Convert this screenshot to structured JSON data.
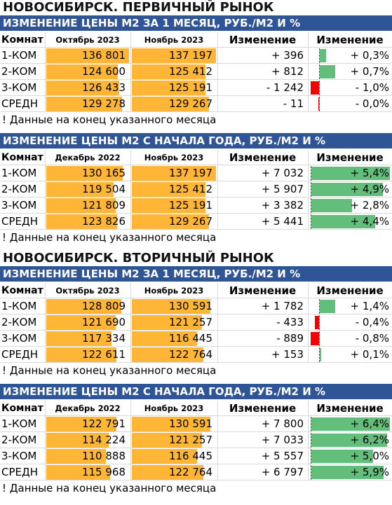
{
  "colors": {
    "header_bg": "#2f5597",
    "price_bar": "#ffb636",
    "positive_bar": "#63be7b",
    "negative_bar": "#f40000"
  },
  "blocks": [
    {
      "main_title": "НОВОСИБИРСК. ПЕРВИЧНЫЙ РЫНОК",
      "tables": [
        {
          "title": "ИЗМЕНЕНИЕ ЦЕНЫ М2 ЗА 1 МЕСЯЦ, РУБ./М2 И %",
          "headers": [
            "Комнат",
            "Октябрь 2023",
            "Ноябрь 2023",
            "Изменение",
            "Изменение"
          ],
          "rows": [
            {
              "room": "1-КОМ",
              "p1": "136 801",
              "p2": "137 197",
              "diff": "+ 396",
              "pct": "+ 0,3%",
              "pct_value": 0.3
            },
            {
              "room": "2-КОМ",
              "p1": "124 600",
              "p2": "125 412",
              "diff": "+ 812",
              "pct": "+ 0,7%",
              "pct_value": 0.7
            },
            {
              "room": "3-КОМ",
              "p1": "126 433",
              "p2": "125 191",
              "diff": "- 1 242",
              "pct": "- 1,0%",
              "pct_value": -1.0
            },
            {
              "room": "СРЕДН",
              "p1": "129 278",
              "p2": "129 267",
              "diff": "- 11",
              "pct": "- 0,0%",
              "pct_value": -0.01
            }
          ],
          "note": "! Данные на конец указанного месяца"
        },
        {
          "title": "ИЗМЕНЕНИЕ ЦЕНЫ М2 С НАЧАЛА ГОДА, РУБ./М2 И %",
          "headers": [
            "Комнат",
            "Декабрь 2022",
            "Ноябрь 2023",
            "Изменение",
            "Изменение"
          ],
          "rows": [
            {
              "room": "1-КОМ",
              "p1": "130 165",
              "p2": "137 197",
              "diff": "+ 7 032",
              "pct": "+ 5,4%",
              "pct_value": 5.4
            },
            {
              "room": "2-КОМ",
              "p1": "119 504",
              "p2": "125 412",
              "diff": "+ 5 907",
              "pct": "+ 4,9%",
              "pct_value": 4.9
            },
            {
              "room": "3-КОМ",
              "p1": "121 809",
              "p2": "125 191",
              "diff": "+ 3 382",
              "pct": "+ 2,8%",
              "pct_value": 2.8
            },
            {
              "room": "СРЕДН",
              "p1": "123 826",
              "p2": "129 267",
              "diff": "+ 5 441",
              "pct": "+ 4,4%",
              "pct_value": 4.4
            }
          ],
          "note": "! Данные на конец указанного месяца"
        }
      ]
    },
    {
      "main_title": "НОВОСИБИРСК. ВТОРИЧНЫЙ РЫНОК",
      "tables": [
        {
          "title": "ИЗМЕНЕНИЕ ЦЕНЫ М2 ЗА 1 МЕСЯЦ, РУБ./М2 И %",
          "headers": [
            "Комнат",
            "Октябрь 2023",
            "Ноябрь 2023",
            "Изменение",
            "Изменение"
          ],
          "rows": [
            {
              "room": "1-КОМ",
              "p1": "128 809",
              "p2": "130 591",
              "diff": "+ 1 782",
              "pct": "+ 1,4%",
              "pct_value": 1.4
            },
            {
              "room": "2-КОМ",
              "p1": "121 690",
              "p2": "121 257",
              "diff": "- 433",
              "pct": "- 0,4%",
              "pct_value": -0.4
            },
            {
              "room": "3-КОМ",
              "p1": "117 334",
              "p2": "116 445",
              "diff": "- 889",
              "pct": "- 0,8%",
              "pct_value": -0.8
            },
            {
              "room": "СРЕДН",
              "p1": "122 611",
              "p2": "122 764",
              "diff": "+ 153",
              "pct": "+ 0,1%",
              "pct_value": 0.1
            }
          ],
          "note": "! Данные на конец указанного месяца"
        },
        {
          "title": "ИЗМЕНЕНИЕ ЦЕНЫ М2 С НАЧАЛА ГОДА, РУБ./М2 И %",
          "headers": [
            "Комнат",
            "Декабрь 2022",
            "Ноябрь 2023",
            "Изменение",
            "Изменение"
          ],
          "rows": [
            {
              "room": "1-КОМ",
              "p1": "122 791",
              "p2": "130 591",
              "diff": "+ 7 800",
              "pct": "+ 6,4%",
              "pct_value": 6.4
            },
            {
              "room": "2-КОМ",
              "p1": "114 224",
              "p2": "121 257",
              "diff": "+ 7 033",
              "pct": "+ 6,2%",
              "pct_value": 6.2
            },
            {
              "room": "3-КОМ",
              "p1": "110 888",
              "p2": "116 445",
              "diff": "+ 5 557",
              "pct": "+ 5,0%",
              "pct_value": 5.0
            },
            {
              "room": "СРЕДН",
              "p1": "115 968",
              "p2": "122 764",
              "diff": "+ 6 797",
              "pct": "+ 5,9%",
              "pct_value": 5.9
            }
          ],
          "note": "! Данные на конец указанного месяца"
        }
      ]
    }
  ]
}
